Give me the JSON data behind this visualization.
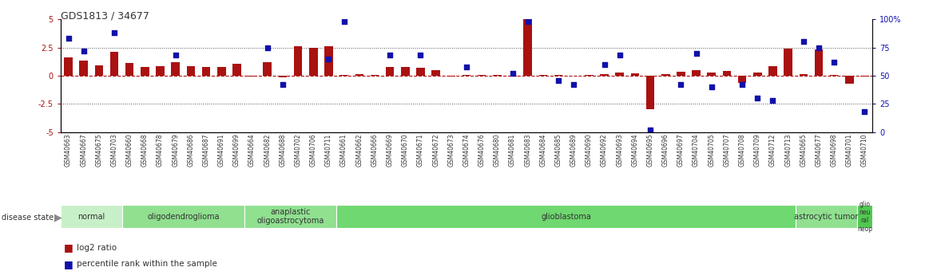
{
  "title": "GDS1813 / 34677",
  "samples": [
    "GSM40663",
    "GSM40667",
    "GSM40675",
    "GSM40703",
    "GSM40660",
    "GSM40668",
    "GSM40678",
    "GSM40679",
    "GSM40686",
    "GSM40687",
    "GSM40691",
    "GSM40699",
    "GSM40664",
    "GSM40682",
    "GSM40688",
    "GSM40702",
    "GSM40706",
    "GSM40711",
    "GSM40661",
    "GSM40662",
    "GSM40666",
    "GSM40669",
    "GSM40670",
    "GSM40671",
    "GSM40672",
    "GSM40673",
    "GSM40674",
    "GSM40676",
    "GSM40680",
    "GSM40681",
    "GSM40683",
    "GSM40684",
    "GSM40685",
    "GSM40689",
    "GSM40690",
    "GSM40692",
    "GSM40693",
    "GSM40694",
    "GSM40695",
    "GSM40696",
    "GSM40697",
    "GSM40704",
    "GSM40705",
    "GSM40707",
    "GSM40708",
    "GSM40709",
    "GSM40712",
    "GSM40713",
    "GSM40665",
    "GSM40677",
    "GSM40698",
    "GSM40701",
    "GSM40710"
  ],
  "log2_ratio": [
    1.6,
    1.3,
    0.9,
    2.1,
    1.1,
    0.8,
    0.85,
    1.2,
    0.85,
    0.75,
    0.8,
    1.05,
    -0.05,
    1.2,
    -0.15,
    2.6,
    2.5,
    2.6,
    0.05,
    0.1,
    0.05,
    0.8,
    0.75,
    0.7,
    0.5,
    -0.05,
    0.05,
    0.05,
    0.05,
    -0.1,
    5.0,
    0.05,
    0.05,
    0.0,
    0.05,
    0.1,
    0.3,
    0.2,
    -3.0,
    0.1,
    0.35,
    0.5,
    0.3,
    0.4,
    -0.65,
    0.3,
    0.85,
    2.4,
    0.1,
    2.3,
    0.05,
    -0.7,
    -0.1
  ],
  "percentile": [
    83,
    72,
    null,
    88,
    null,
    null,
    null,
    68,
    null,
    null,
    null,
    null,
    null,
    75,
    42,
    null,
    null,
    65,
    98,
    null,
    null,
    68,
    null,
    68,
    null,
    null,
    58,
    null,
    null,
    52,
    98,
    null,
    46,
    42,
    null,
    60,
    68,
    null,
    2,
    null,
    42,
    70,
    40,
    null,
    42,
    30,
    28,
    null,
    80,
    75,
    62,
    null,
    18
  ],
  "disease_groups": [
    {
      "label": "normal",
      "start": 0,
      "end": 3,
      "color": "#c8f0c8"
    },
    {
      "label": "oligodendroglioma",
      "start": 4,
      "end": 11,
      "color": "#90e090"
    },
    {
      "label": "anaplastic\noligoastrocytoma",
      "start": 12,
      "end": 17,
      "color": "#90e090"
    },
    {
      "label": "glioblastoma",
      "start": 18,
      "end": 47,
      "color": "#70d870"
    },
    {
      "label": "astrocytic tumor",
      "start": 48,
      "end": 51,
      "color": "#90e090"
    },
    {
      "label": "glio\nneu\nral\nneop",
      "start": 52,
      "end": 52,
      "color": "#50c850"
    }
  ],
  "ylim": [
    -5,
    5
  ],
  "bar_color": "#aa1111",
  "dot_color": "#1111aa",
  "bg_color": "#ffffff"
}
